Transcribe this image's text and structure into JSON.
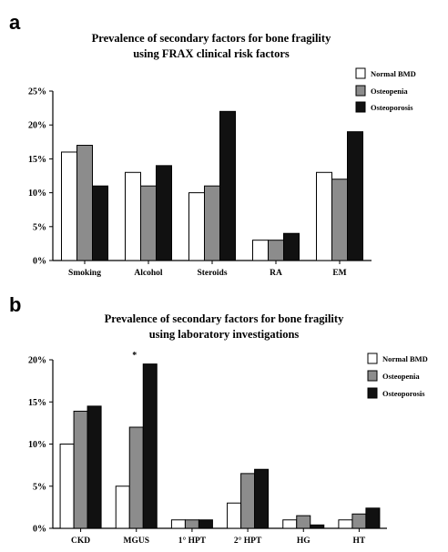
{
  "panels": [
    {
      "label": "a"
    },
    {
      "label": "b"
    }
  ],
  "legend": [
    {
      "name": "Normal BMD",
      "color": "#ffffff"
    },
    {
      "name": "Osteopenia",
      "color": "#8c8c8c"
    },
    {
      "name": "Osteoporosis",
      "color": "#111111"
    }
  ],
  "chart_data": [
    {
      "type": "bar",
      "title": [
        "Prevalence of secondary factors for bone fragility",
        "using FRAX clinical risk factors"
      ],
      "categories": [
        "Smoking",
        "Alcohol",
        "Steroids",
        "RA",
        "EM"
      ],
      "series": [
        {
          "name": "Normal BMD",
          "values": [
            16,
            13,
            10,
            3,
            13
          ]
        },
        {
          "name": "Osteopenia",
          "values": [
            17,
            11,
            11,
            3,
            12
          ]
        },
        {
          "name": "Osteoporosis",
          "values": [
            11,
            14,
            22,
            4,
            19
          ]
        }
      ],
      "ylim": [
        0,
        25
      ],
      "yticks": [
        "0%",
        "5%",
        "10%",
        "15%",
        "20%",
        "25%"
      ],
      "legend_position": "top-right",
      "grid": false
    },
    {
      "type": "bar",
      "title": [
        "Prevalence of secondary factors for bone fragility",
        "using laboratory investigations"
      ],
      "categories": [
        "CKD",
        "MGUS",
        "1° HPT",
        "2° HPT",
        "HG",
        "HT"
      ],
      "series": [
        {
          "name": "Normal BMD",
          "values": [
            10,
            5,
            1,
            3,
            1,
            1
          ]
        },
        {
          "name": "Osteopenia",
          "values": [
            13.9,
            12,
            1,
            6.5,
            1.5,
            1.7
          ]
        },
        {
          "name": "Osteoporosis",
          "values": [
            14.5,
            19.5,
            1,
            7,
            0.4,
            2.4
          ]
        }
      ],
      "ylim": [
        0,
        20
      ],
      "yticks": [
        "0%",
        "5%",
        "10%",
        "15%",
        "20%"
      ],
      "annotations": [
        {
          "text": "*",
          "category": "MGUS"
        }
      ],
      "legend_position": "top-right",
      "grid": false
    }
  ]
}
